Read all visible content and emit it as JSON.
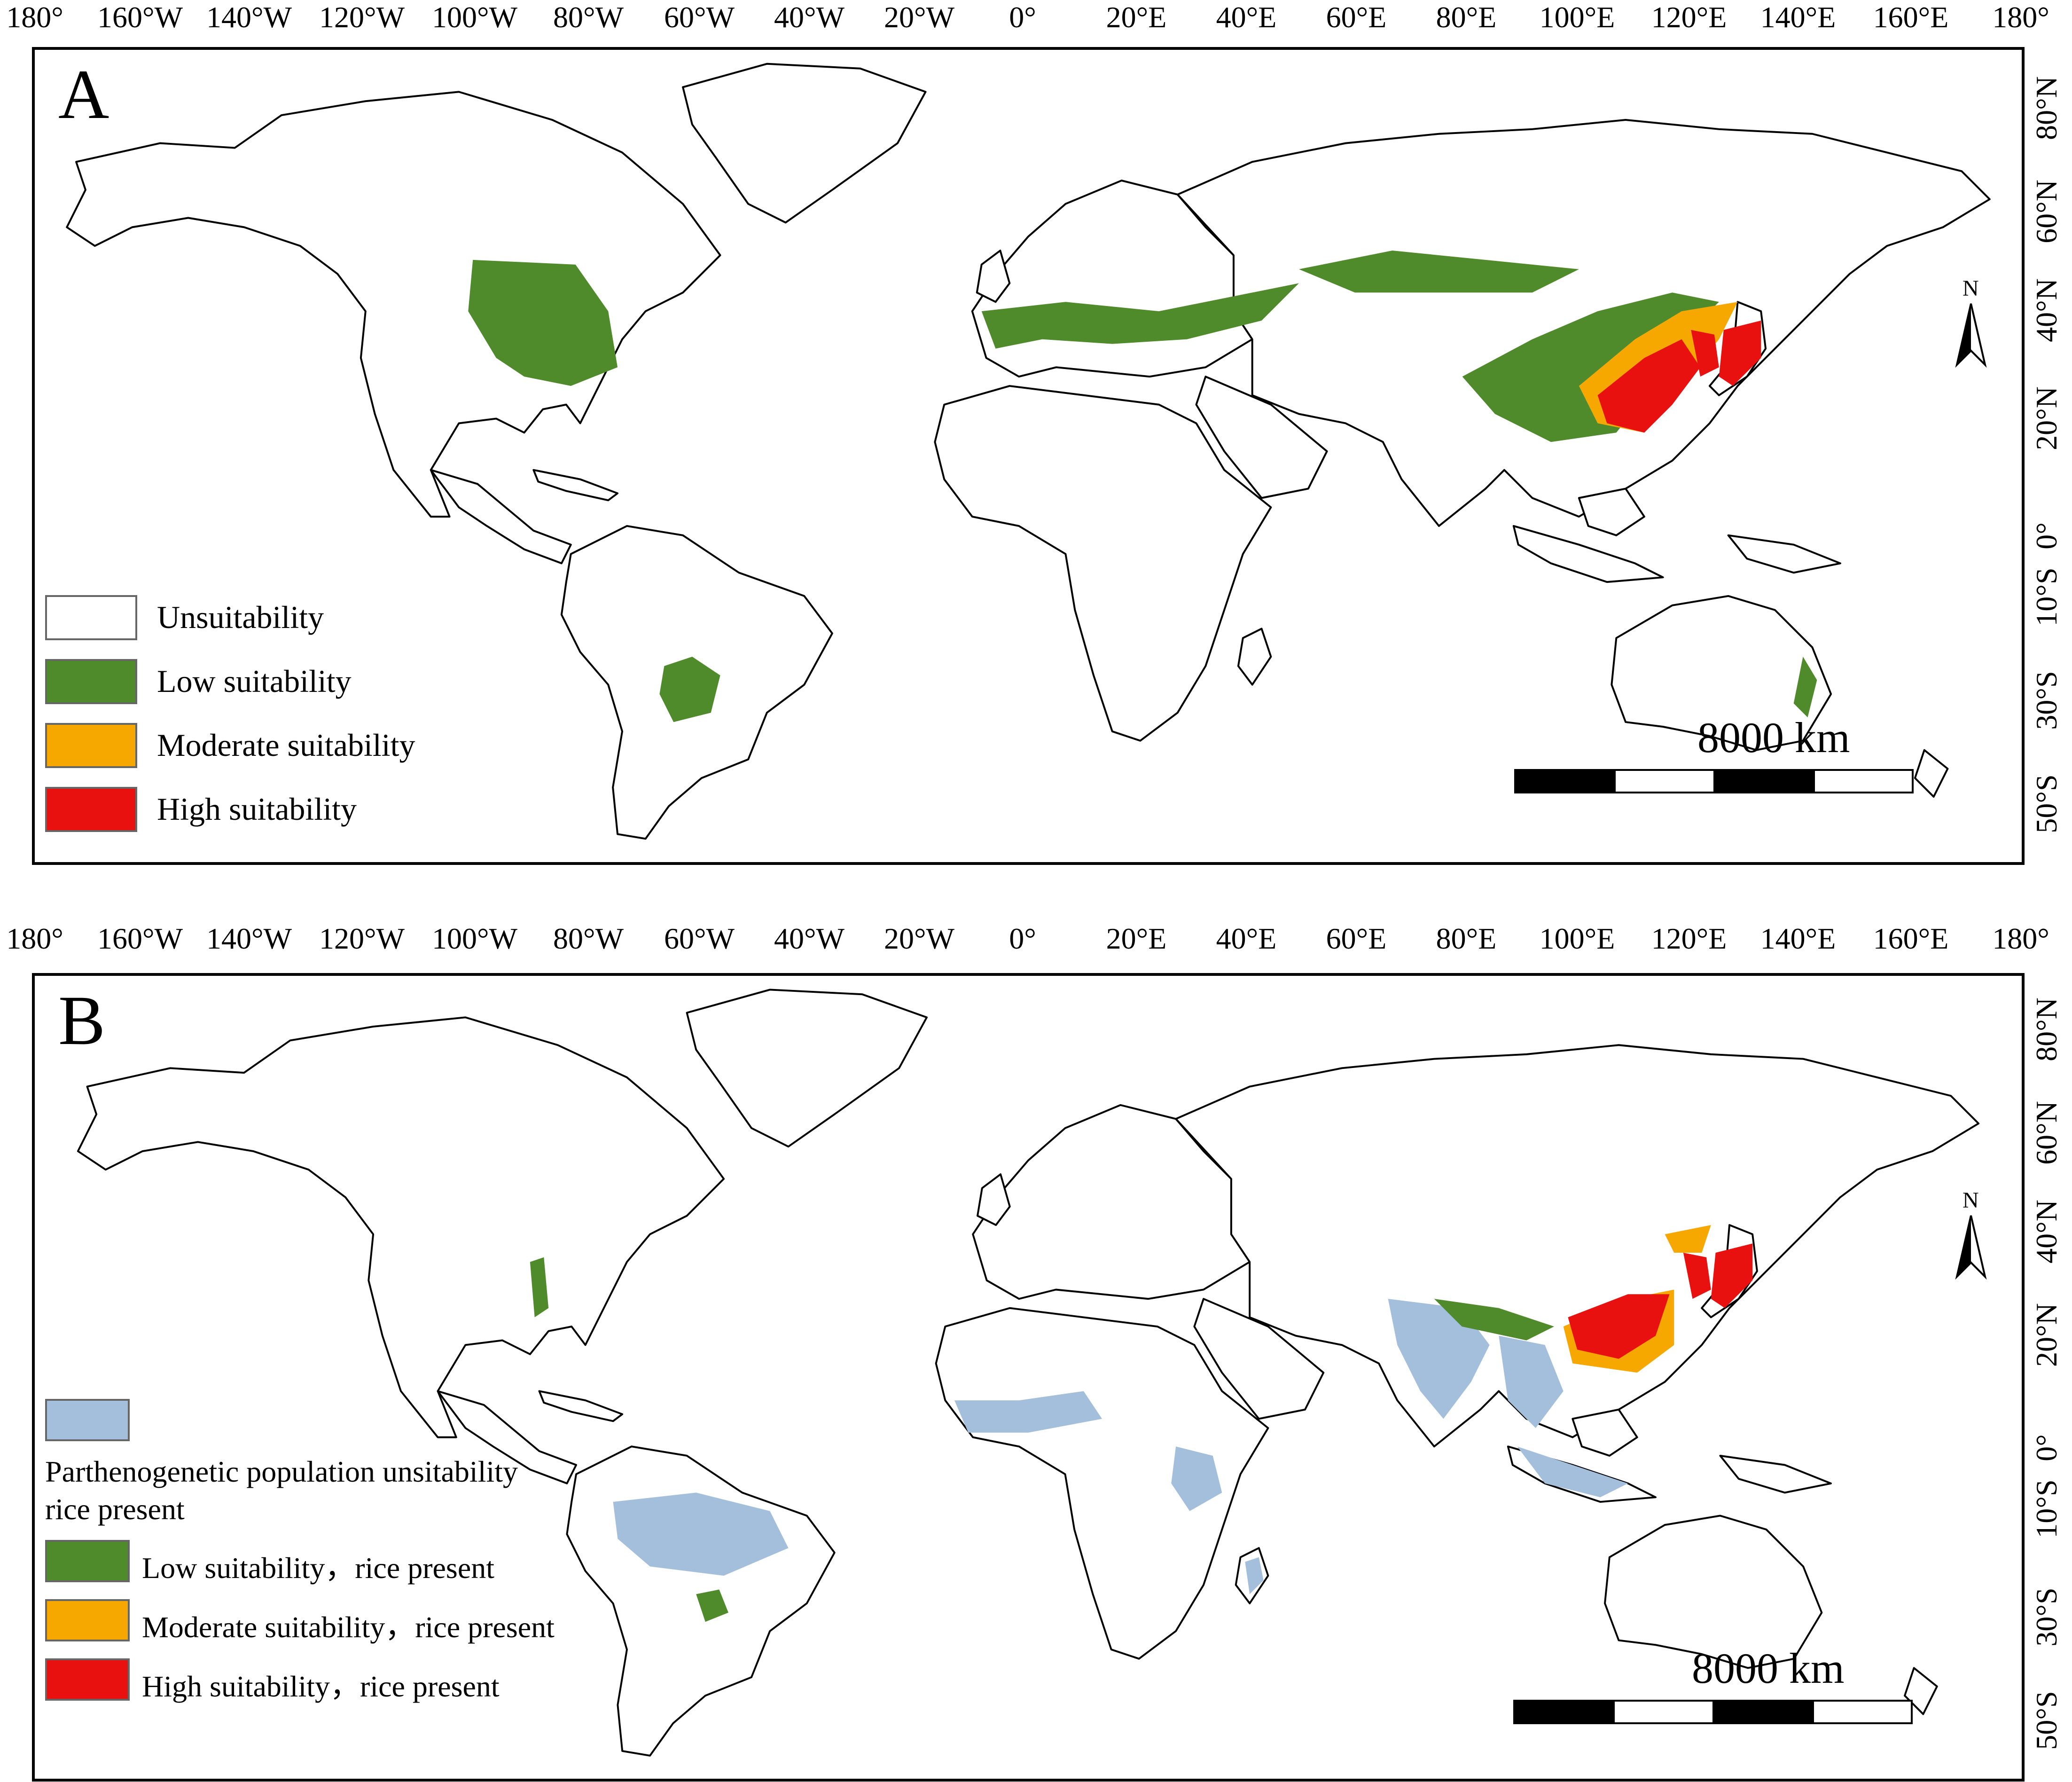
{
  "longitude_labels": [
    "180°",
    "160°W",
    "140°W",
    "120°W",
    "100°W",
    "80°W",
    "60°W",
    "40°W",
    "20°W",
    "0°",
    "20°E",
    "40°E",
    "60°E",
    "80°E",
    "100°E",
    "120°E",
    "140°E",
    "160°E",
    "180°"
  ],
  "latitude_labels": [
    "80°N",
    "60°N",
    "40°N",
    "20°N",
    "0°",
    "10°S",
    "30°S",
    "50°S"
  ],
  "colors": {
    "unsuitable": "#ffffff",
    "low": "#4f8a2b",
    "moderate": "#f7a800",
    "high": "#e8110f",
    "rice_unsuitable": "#a4bfdc"
  },
  "panel_a": {
    "letter": "A",
    "legend": [
      {
        "label": "Unsuitability",
        "color_key": "unsuitable"
      },
      {
        "label": "Low suitability",
        "color_key": "low"
      },
      {
        "label": "Moderate suitability",
        "color_key": "moderate"
      },
      {
        "label": "High suitability",
        "color_key": "high"
      }
    ],
    "scale_label": "8000 km"
  },
  "panel_b": {
    "letter": "B",
    "legend_top_color_key": "rice_unsuitable",
    "legend_note_line1": "Parthenogenetic population unsitability",
    "legend_note_line2": "rice present",
    "legend": [
      {
        "label": "Low suitability，rice present",
        "color_key": "low"
      },
      {
        "label": "Moderate suitability，rice present",
        "color_key": "moderate"
      },
      {
        "label": "High suitability，rice present",
        "color_key": "high"
      }
    ],
    "scale_label": "8000 km"
  },
  "north_label": "N"
}
